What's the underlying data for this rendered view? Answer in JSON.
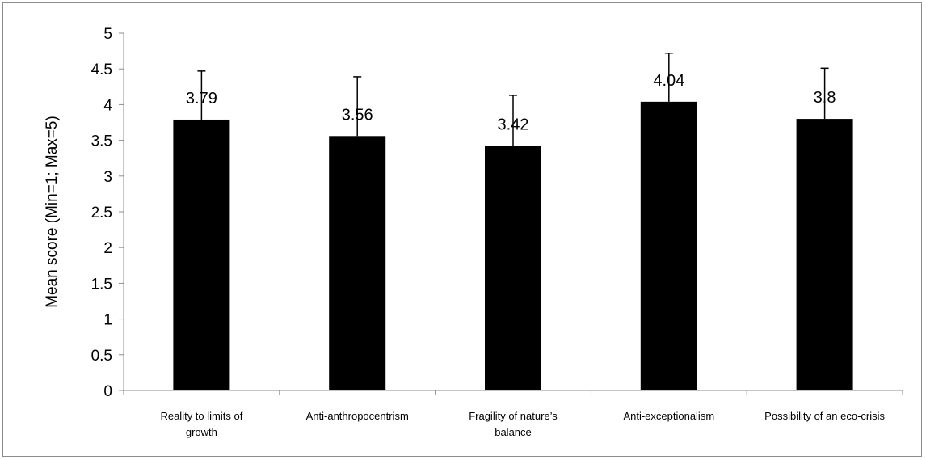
{
  "chart_data": {
    "type": "bar",
    "title": "",
    "xlabel": "",
    "ylabel": "Mean score (Min=1; Max=5)",
    "ylim": [
      0,
      5
    ],
    "yticks": [
      0,
      0.5,
      1,
      1.5,
      2,
      2.5,
      3,
      3.5,
      4,
      4.5,
      5
    ],
    "ytick_labels": [
      "0",
      "0.5",
      "1",
      "1.5",
      "2",
      "2.5",
      "3",
      "3.5",
      "4",
      "4.5",
      "5"
    ],
    "categories": [
      [
        "Reality to limits of",
        "growth"
      ],
      [
        "Anti-anthropocentrism"
      ],
      [
        "Fragility of nature’s",
        "balance"
      ],
      [
        "Anti-exceptionalism"
      ],
      [
        "Possibility of an eco-crisis"
      ]
    ],
    "values": [
      3.79,
      3.56,
      3.42,
      4.04,
      3.8
    ],
    "value_labels": [
      "3.79",
      "3.56",
      "3.42",
      "4.04",
      "3.8"
    ],
    "error_plus": [
      0.68,
      0.83,
      0.71,
      0.68,
      0.71
    ],
    "grid": false,
    "legend": "none",
    "bar_color": "#000000"
  }
}
